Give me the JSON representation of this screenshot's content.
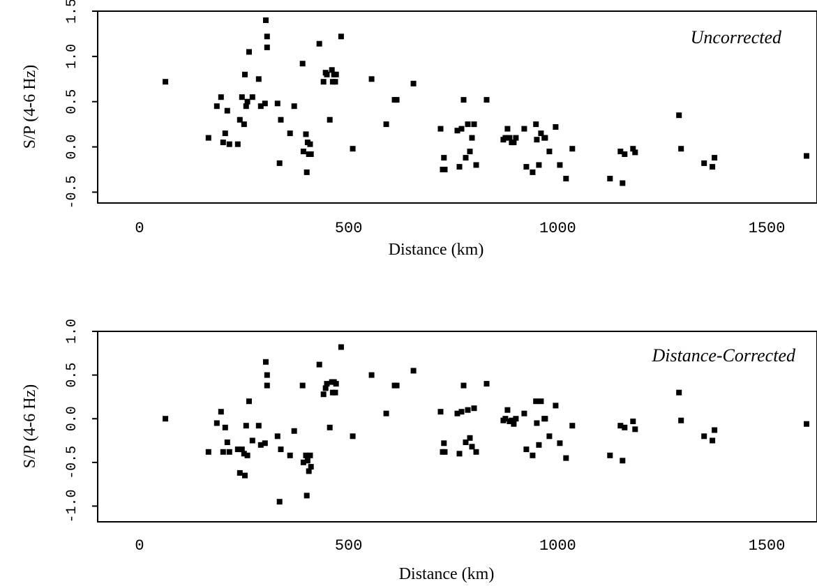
{
  "chart_data": [
    {
      "type": "scatter",
      "annotation": "Uncorrected",
      "xlabel": "Distance (km)",
      "ylabel": "S/P (4-6 Hz)",
      "xlim": [
        -100,
        1620
      ],
      "ylim": [
        -0.62,
        1.5
      ],
      "xticks": [
        0,
        500,
        1000,
        1500
      ],
      "xtick_labels": [
        "0",
        "500",
        "1000",
        "1500"
      ],
      "yticks": [
        -0.5,
        0.0,
        0.5,
        1.0,
        1.5
      ],
      "ytick_labels": [
        "-0.5",
        "0.0",
        "0.5",
        "1.0",
        "1.5"
      ],
      "grid": false,
      "points": [
        [
          62,
          0.72
        ],
        [
          165,
          0.1
        ],
        [
          185,
          0.45
        ],
        [
          195,
          0.55
        ],
        [
          200,
          0.05
        ],
        [
          205,
          0.15
        ],
        [
          210,
          0.4
        ],
        [
          215,
          0.03
        ],
        [
          235,
          0.03
        ],
        [
          240,
          0.3
        ],
        [
          245,
          0.55
        ],
        [
          250,
          0.25
        ],
        [
          252,
          0.8
        ],
        [
          255,
          0.45
        ],
        [
          258,
          0.5
        ],
        [
          262,
          1.05
        ],
        [
          270,
          0.55
        ],
        [
          285,
          0.75
        ],
        [
          290,
          0.45
        ],
        [
          300,
          0.48
        ],
        [
          302,
          1.4
        ],
        [
          305,
          1.22
        ],
        [
          305,
          1.1
        ],
        [
          330,
          0.48
        ],
        [
          335,
          -0.18
        ],
        [
          338,
          0.3
        ],
        [
          360,
          0.15
        ],
        [
          370,
          0.45
        ],
        [
          390,
          0.92
        ],
        [
          392,
          -0.05
        ],
        [
          398,
          0.14
        ],
        [
          400,
          -0.28
        ],
        [
          402,
          0.05
        ],
        [
          405,
          -0.08
        ],
        [
          408,
          0.03
        ],
        [
          410,
          -0.08
        ],
        [
          430,
          1.14
        ],
        [
          440,
          0.72
        ],
        [
          445,
          0.82
        ],
        [
          448,
          0.8
        ],
        [
          455,
          0.3
        ],
        [
          460,
          0.85
        ],
        [
          462,
          0.72
        ],
        [
          465,
          0.8
        ],
        [
          468,
          0.72
        ],
        [
          470,
          0.8
        ],
        [
          482,
          1.22
        ],
        [
          510,
          -0.02
        ],
        [
          555,
          0.75
        ],
        [
          590,
          0.25
        ],
        [
          610,
          0.52
        ],
        [
          615,
          0.52
        ],
        [
          655,
          0.7
        ],
        [
          720,
          0.2
        ],
        [
          725,
          -0.25
        ],
        [
          728,
          -0.12
        ],
        [
          730,
          -0.25
        ],
        [
          760,
          0.18
        ],
        [
          765,
          -0.22
        ],
        [
          770,
          0.2
        ],
        [
          775,
          0.52
        ],
        [
          780,
          -0.12
        ],
        [
          785,
          0.25
        ],
        [
          790,
          -0.05
        ],
        [
          795,
          0.1
        ],
        [
          800,
          0.25
        ],
        [
          805,
          -0.2
        ],
        [
          830,
          0.52
        ],
        [
          870,
          0.08
        ],
        [
          875,
          0.1
        ],
        [
          880,
          0.2
        ],
        [
          885,
          0.1
        ],
        [
          890,
          0.05
        ],
        [
          895,
          0.05
        ],
        [
          900,
          0.1
        ],
        [
          920,
          0.2
        ],
        [
          925,
          -0.22
        ],
        [
          940,
          -0.28
        ],
        [
          948,
          0.25
        ],
        [
          950,
          0.08
        ],
        [
          955,
          -0.2
        ],
        [
          960,
          0.15
        ],
        [
          968,
          0.1
        ],
        [
          970,
          0.1
        ],
        [
          980,
          -0.05
        ],
        [
          995,
          0.22
        ],
        [
          1005,
          -0.2
        ],
        [
          1020,
          -0.35
        ],
        [
          1035,
          -0.02
        ],
        [
          1125,
          -0.35
        ],
        [
          1150,
          -0.05
        ],
        [
          1155,
          -0.4
        ],
        [
          1160,
          -0.08
        ],
        [
          1180,
          -0.02
        ],
        [
          1185,
          -0.06
        ],
        [
          1290,
          0.35
        ],
        [
          1295,
          -0.02
        ],
        [
          1350,
          -0.18
        ],
        [
          1370,
          -0.22
        ],
        [
          1375,
          -0.12
        ],
        [
          1595,
          -0.1
        ]
      ]
    },
    {
      "type": "scatter",
      "annotation": "Distance-Corrected",
      "xlabel": "Distance (km)",
      "ylabel": "S/P (4-6 Hz)",
      "xlim": [
        -100,
        1620
      ],
      "ylim": [
        -1.18,
        1.0
      ],
      "xticks": [
        0,
        500,
        1000,
        1500
      ],
      "xtick_labels": [
        "0",
        "500",
        "1000",
        "1500"
      ],
      "yticks": [
        -1.0,
        -0.5,
        0.0,
        0.5,
        1.0
      ],
      "ytick_labels": [
        "-1.0",
        "-0.5",
        "0.0",
        "0.5",
        "1.0"
      ],
      "grid": false,
      "points": [
        [
          62,
          0.0
        ],
        [
          165,
          -0.38
        ],
        [
          185,
          -0.05
        ],
        [
          195,
          0.08
        ],
        [
          200,
          -0.38
        ],
        [
          205,
          -0.1
        ],
        [
          210,
          -0.27
        ],
        [
          215,
          -0.38
        ],
        [
          235,
          -0.35
        ],
        [
          240,
          -0.62
        ],
        [
          245,
          -0.35
        ],
        [
          250,
          -0.4
        ],
        [
          252,
          -0.65
        ],
        [
          255,
          -0.08
        ],
        [
          258,
          -0.42
        ],
        [
          262,
          0.2
        ],
        [
          270,
          -0.25
        ],
        [
          285,
          -0.08
        ],
        [
          290,
          -0.3
        ],
        [
          300,
          -0.28
        ],
        [
          302,
          0.65
        ],
        [
          305,
          0.5
        ],
        [
          305,
          0.38
        ],
        [
          330,
          -0.2
        ],
        [
          335,
          -0.95
        ],
        [
          338,
          -0.35
        ],
        [
          360,
          -0.42
        ],
        [
          370,
          -0.14
        ],
        [
          390,
          0.38
        ],
        [
          392,
          -0.5
        ],
        [
          398,
          -0.42
        ],
        [
          400,
          -0.88
        ],
        [
          402,
          -0.48
        ],
        [
          405,
          -0.6
        ],
        [
          408,
          -0.42
        ],
        [
          410,
          -0.55
        ],
        [
          430,
          0.62
        ],
        [
          440,
          0.28
        ],
        [
          445,
          0.35
        ],
        [
          448,
          0.4
        ],
        [
          455,
          -0.1
        ],
        [
          460,
          0.42
        ],
        [
          462,
          0.3
        ],
        [
          465,
          0.42
        ],
        [
          468,
          0.3
        ],
        [
          470,
          0.4
        ],
        [
          482,
          0.82
        ],
        [
          510,
          -0.2
        ],
        [
          555,
          0.5
        ],
        [
          590,
          0.06
        ],
        [
          610,
          0.38
        ],
        [
          615,
          0.38
        ],
        [
          655,
          0.55
        ],
        [
          720,
          0.08
        ],
        [
          725,
          -0.38
        ],
        [
          728,
          -0.28
        ],
        [
          730,
          -0.38
        ],
        [
          760,
          0.06
        ],
        [
          765,
          -0.4
        ],
        [
          770,
          0.08
        ],
        [
          775,
          0.38
        ],
        [
          780,
          -0.27
        ],
        [
          785,
          0.1
        ],
        [
          790,
          -0.22
        ],
        [
          795,
          -0.32
        ],
        [
          800,
          0.12
        ],
        [
          805,
          -0.38
        ],
        [
          830,
          0.4
        ],
        [
          870,
          -0.02
        ],
        [
          875,
          0.0
        ],
        [
          880,
          0.1
        ],
        [
          885,
          -0.03
        ],
        [
          890,
          -0.02
        ],
        [
          895,
          -0.06
        ],
        [
          900,
          0.0
        ],
        [
          920,
          0.06
        ],
        [
          925,
          -0.35
        ],
        [
          940,
          -0.42
        ],
        [
          948,
          0.2
        ],
        [
          950,
          -0.05
        ],
        [
          955,
          -0.3
        ],
        [
          960,
          0.2
        ],
        [
          968,
          0.0
        ],
        [
          970,
          0.0
        ],
        [
          980,
          -0.2
        ],
        [
          995,
          0.15
        ],
        [
          1005,
          -0.28
        ],
        [
          1020,
          -0.45
        ],
        [
          1035,
          -0.08
        ],
        [
          1125,
          -0.42
        ],
        [
          1150,
          -0.08
        ],
        [
          1155,
          -0.48
        ],
        [
          1160,
          -0.1
        ],
        [
          1180,
          -0.03
        ],
        [
          1185,
          -0.12
        ],
        [
          1290,
          0.3
        ],
        [
          1295,
          -0.02
        ],
        [
          1350,
          -0.2
        ],
        [
          1370,
          -0.25
        ],
        [
          1375,
          -0.13
        ],
        [
          1595,
          -0.06
        ]
      ]
    }
  ]
}
